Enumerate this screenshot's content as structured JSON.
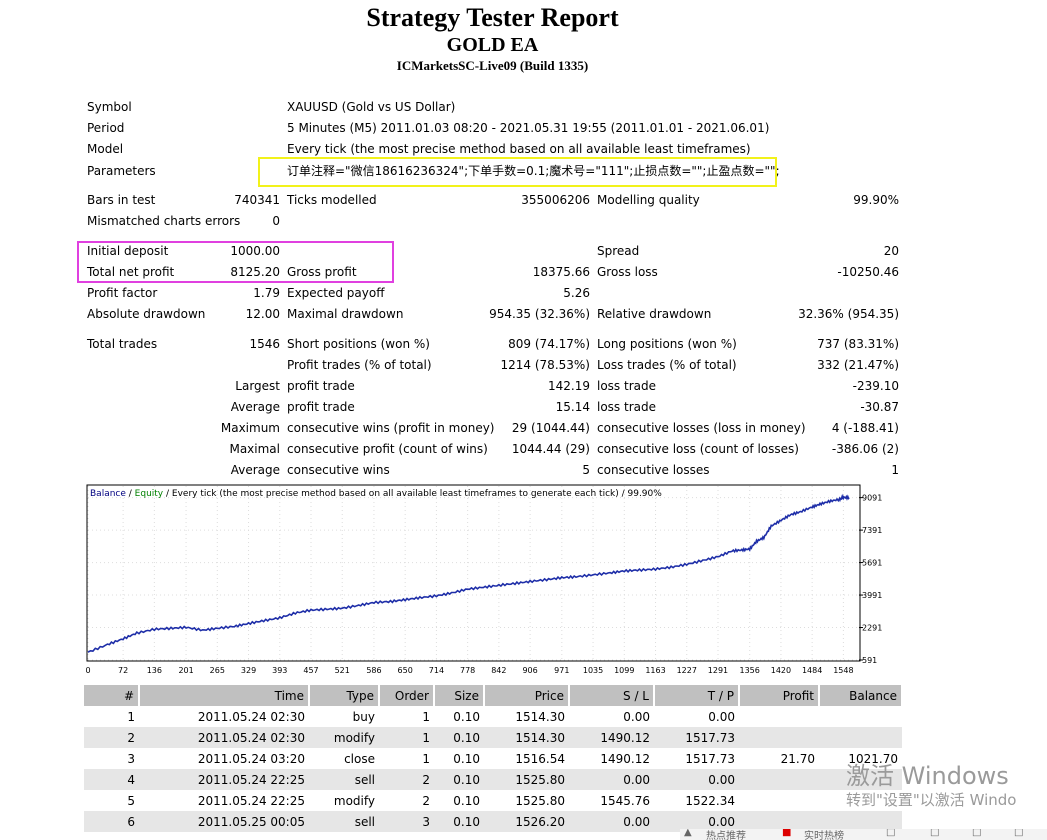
{
  "report": {
    "title": "Strategy Tester Report",
    "subtitle": "GOLD EA",
    "server": "ICMarketsSC-Live09 (Build 1335)"
  },
  "info": {
    "symbol_label": "Symbol",
    "symbol_value": "XAUUSD (Gold vs US Dollar)",
    "period_label": "Period",
    "period_value": "5 Minutes (M5) 2011.01.03 08:20 - 2021.05.31 19:55 (2011.01.01 - 2021.06.01)",
    "model_label": "Model",
    "model_value": "Every tick (the most precise method based on all available least timeframes)",
    "parameters_label": "Parameters",
    "parameters_value": "订单注释=\"微信18616236324\";下单手数=0.1;魔术号=\"111\";止损点数=\"\";止盈点数=\"\";"
  },
  "stats": {
    "bars_label": "Bars in test",
    "bars_value": "740341",
    "ticks_label": "Ticks modelled",
    "ticks_value": "355006206",
    "quality_label": "Modelling quality",
    "quality_value": "99.90%",
    "mismatch_label": "Mismatched charts errors",
    "mismatch_value": "0",
    "deposit_label": "Initial deposit",
    "deposit_value": "1000.00",
    "spread_label": "Spread",
    "spread_value": "20",
    "netprofit_label": "Total net profit",
    "netprofit_value": "8125.20",
    "grossprofit_label": "Gross profit",
    "grossprofit_value": "18375.66",
    "grossloss_label": "Gross loss",
    "grossloss_value": "-10250.46",
    "pf_label": "Profit factor",
    "pf_value": "1.79",
    "payoff_label": "Expected payoff",
    "payoff_value": "5.26",
    "absdd_label": "Absolute drawdown",
    "absdd_value": "12.00",
    "maxdd_label": "Maximal drawdown",
    "maxdd_value": "954.35 (32.36%)",
    "reldd_label": "Relative drawdown",
    "reldd_value": "32.36% (954.35)",
    "trades_label": "Total trades",
    "trades_value": "1546",
    "short_label": "Short positions (won %)",
    "short_value": "809 (74.17%)",
    "long_label": "Long positions (won %)",
    "long_value": "737 (83.31%)",
    "ptrades_label": "Profit trades (% of total)",
    "ptrades_value": "1214 (78.53%)",
    "ltrades_label": "Loss trades (% of total)",
    "ltrades_value": "332 (21.47%)",
    "largest_label": "Largest",
    "largest_profit_label": "profit trade",
    "largest_profit_value": "142.19",
    "largest_loss_label": "loss trade",
    "largest_loss_value": "-239.10",
    "average_label": "Average",
    "average_profit_label": "profit trade",
    "average_profit_value": "15.14",
    "average_loss_label": "loss trade",
    "average_loss_value": "-30.87",
    "maximum_label": "Maximum",
    "max_wins_label": "consecutive wins (profit in money)",
    "max_wins_value": "29 (1044.44)",
    "max_losses_label": "consecutive losses (loss in money)",
    "max_losses_value": "4 (-188.41)",
    "maximal_label": "Maximal",
    "maximal_profit_label": "consecutive profit (count of wins)",
    "maximal_profit_value": "1044.44 (29)",
    "maximal_loss_label": "consecutive loss (count of losses)",
    "maximal_loss_value": "-386.06 (2)",
    "avg_label": "Average",
    "avg_wins_label": "consecutive wins",
    "avg_wins_value": "5",
    "avg_losses_label": "consecutive losses",
    "avg_losses_value": "1"
  },
  "chart_data": {
    "type": "line",
    "legend_balance": "Balance",
    "legend_sep1": " / ",
    "legend_equity": "Equity",
    "legend_rest": " / Every tick (the most precise method based on all available least timeframes to generate each tick) / 99.90%",
    "x_ticks": [
      "0",
      "72",
      "136",
      "201",
      "265",
      "329",
      "393",
      "457",
      "521",
      "586",
      "650",
      "714",
      "778",
      "842",
      "906",
      "971",
      "1035",
      "1099",
      "1163",
      "1227",
      "1291",
      "1356",
      "1420",
      "1484",
      "1548"
    ],
    "y_ticks": [
      "9091",
      "7391",
      "5691",
      "3991",
      "2291",
      "591"
    ],
    "ylim": [
      591,
      9700
    ],
    "xlim": [
      0,
      1580
    ],
    "series": [
      {
        "name": "Balance",
        "color": "#1e2ea8",
        "x": [
          0,
          40,
          72,
          100,
          136,
          170,
          201,
          235,
          265,
          300,
          329,
          360,
          393,
          425,
          457,
          490,
          521,
          555,
          586,
          620,
          650,
          680,
          714,
          745,
          778,
          810,
          842,
          875,
          906,
          940,
          971,
          1000,
          1035,
          1070,
          1099,
          1130,
          1163,
          1195,
          1227,
          1260,
          1291,
          1320,
          1340,
          1356,
          1370,
          1385,
          1400,
          1420,
          1440,
          1460,
          1484,
          1500,
          1520,
          1540,
          1548,
          1560
        ],
        "y": [
          1000,
          1400,
          1700,
          2000,
          2200,
          2250,
          2300,
          2150,
          2250,
          2350,
          2500,
          2650,
          2800,
          3050,
          3200,
          3250,
          3300,
          3450,
          3600,
          3650,
          3750,
          3850,
          3950,
          4100,
          4300,
          4400,
          4500,
          4600,
          4700,
          4800,
          4900,
          4950,
          5050,
          5150,
          5250,
          5300,
          5350,
          5450,
          5600,
          5800,
          6000,
          6300,
          6350,
          6400,
          6800,
          7000,
          7600,
          7900,
          8200,
          8350,
          8600,
          8750,
          8900,
          9000,
          9100,
          9091
        ]
      }
    ]
  },
  "trades_table": {
    "headers": [
      "#",
      "Time",
      "Type",
      "Order",
      "Size",
      "Price",
      "S / L",
      "T / P",
      "Profit",
      "Balance"
    ],
    "rows": [
      [
        "1",
        "2011.05.24 02:30",
        "buy",
        "1",
        "0.10",
        "1514.30",
        "0.00",
        "0.00",
        "",
        ""
      ],
      [
        "2",
        "2011.05.24 02:30",
        "modify",
        "1",
        "0.10",
        "1514.30",
        "1490.12",
        "1517.73",
        "",
        ""
      ],
      [
        "3",
        "2011.05.24 03:20",
        "close",
        "1",
        "0.10",
        "1516.54",
        "1490.12",
        "1517.73",
        "21.70",
        "1021.70"
      ],
      [
        "4",
        "2011.05.24 22:25",
        "sell",
        "2",
        "0.10",
        "1525.80",
        "0.00",
        "0.00",
        "",
        ""
      ],
      [
        "5",
        "2011.05.24 22:25",
        "modify",
        "2",
        "0.10",
        "1525.80",
        "1545.76",
        "1522.34",
        "",
        ""
      ],
      [
        "6",
        "2011.05.25 00:05",
        "sell",
        "3",
        "0.10",
        "1526.20",
        "0.00",
        "0.00",
        "",
        ""
      ]
    ]
  },
  "overlay": {
    "watermark_line1": "激活 Windows",
    "watermark_line2": "转到\"设置\"以激活 Windo",
    "taskbar_item1": "热点推荐",
    "taskbar_item2": "实时热榜"
  }
}
